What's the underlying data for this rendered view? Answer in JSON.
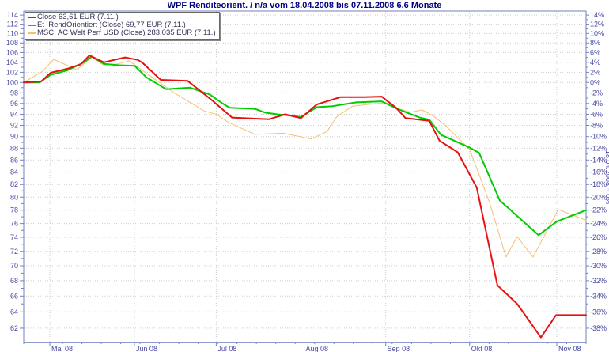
{
  "title": "WPF Renditeorient. / n/a vom 18.04.2008 bis 07.11.2008 6,6 Monate",
  "legend": {
    "items": [
      {
        "label": "Close 63,61 EUR (7.11.)",
        "color": "#e81010"
      },
      {
        "label": "Et_RendOrientiert (Close) 69,77 EUR (7.11.)",
        "color": "#00cc00"
      },
      {
        "label": "MSCI AC Welt Perf USD (Close) 283,035 EUR (7.11.)",
        "color": "#f2c174"
      }
    ]
  },
  "colors": {
    "red": "#e81010",
    "green": "#00cc00",
    "orange": "#f2c174",
    "grid": "#cccccc",
    "axis_text": "#4646a0",
    "axis_line": "#7282c0",
    "title": "#000080"
  },
  "chart_data": {
    "type": "line",
    "title": "WPF Renditeorient. / n/a vom 18.04.2008 bis 07.11.2008 6,6 Monate",
    "date_start": "18.04.2008",
    "date_end": "07.11.2008",
    "duration_label": "6,6 Monate",
    "y_scale": "log",
    "y_left_ticks": [
      114,
      112,
      110,
      108,
      106,
      104,
      102,
      100,
      98,
      96,
      94,
      92,
      90,
      88,
      86,
      84,
      82,
      80,
      78,
      76,
      74,
      72,
      70,
      68,
      66,
      64,
      62
    ],
    "y_right_tick_labels": [
      "14%",
      "12%",
      "10%",
      "8%",
      "6%",
      "4%",
      "2%",
      "0%",
      "-2%",
      "-4%",
      "-6%",
      "-8%",
      "-10%",
      "-12%",
      "-14%",
      "-16%",
      "-18%",
      "-20%",
      "-22%",
      "-24%",
      "-26%",
      "-28%",
      "-30%",
      "-32%",
      "-34%",
      "-36%",
      "-38%"
    ],
    "y_right_axis_title": "18.04.2008 = 0%",
    "x_month_ticks": [
      {
        "label": "Mai 08",
        "t": 0.0465
      },
      {
        "label": "Jun 08",
        "t": 0.1968
      },
      {
        "label": "Jul 08",
        "t": 0.3423
      },
      {
        "label": "Aug 08",
        "t": 0.4986
      },
      {
        "label": "Sep 08",
        "t": 0.6437
      },
      {
        "label": "Okt 08",
        "t": 0.7929
      },
      {
        "label": "Nov 08",
        "t": 0.9479
      }
    ],
    "series": [
      {
        "name": "MSCI AC Welt Perf USD",
        "color": "#f2c174",
        "width": 1,
        "points": [
          [
            0.0,
            100.0
          ],
          [
            0.0324,
            102.1
          ],
          [
            0.0535,
            104.6
          ],
          [
            0.0944,
            102.5
          ],
          [
            0.1211,
            105.0
          ],
          [
            0.1423,
            103.4
          ],
          [
            0.169,
            103.7
          ],
          [
            0.1873,
            104.3
          ],
          [
            0.2183,
            101.8
          ],
          [
            0.2676,
            98.0
          ],
          [
            0.2958,
            96.2
          ],
          [
            0.3211,
            94.6
          ],
          [
            0.3423,
            94.0
          ],
          [
            0.3662,
            92.4
          ],
          [
            0.4113,
            90.4
          ],
          [
            0.4606,
            90.6
          ],
          [
            0.5113,
            89.6
          ],
          [
            0.5394,
            90.9
          ],
          [
            0.5563,
            93.5
          ],
          [
            0.5845,
            95.5
          ],
          [
            0.6197,
            95.9
          ],
          [
            0.6408,
            96.1
          ],
          [
            0.669,
            94.9
          ],
          [
            0.6887,
            94.4
          ],
          [
            0.7085,
            94.8
          ],
          [
            0.7296,
            93.6
          ],
          [
            0.7507,
            91.9
          ],
          [
            0.793,
            87.8
          ],
          [
            0.8282,
            79.2
          ],
          [
            0.8577,
            71.2
          ],
          [
            0.8775,
            74.1
          ],
          [
            0.9056,
            71.2
          ],
          [
            0.9507,
            78.1
          ],
          [
            1.0,
            76.5
          ]
        ]
      },
      {
        "name": "Et_RendOrientiert",
        "color": "#00cc00",
        "width": 2,
        "points": [
          [
            0.0,
            100.0
          ],
          [
            0.028,
            100.0
          ],
          [
            0.048,
            101.5
          ],
          [
            0.0775,
            102.4
          ],
          [
            0.1056,
            103.9
          ],
          [
            0.1211,
            105.2
          ],
          [
            0.1423,
            103.7
          ],
          [
            0.169,
            103.4
          ],
          [
            0.1972,
            103.3
          ],
          [
            0.2183,
            101.0
          ],
          [
            0.2535,
            98.7
          ],
          [
            0.2958,
            99.0
          ],
          [
            0.331,
            97.7
          ],
          [
            0.352,
            96.1
          ],
          [
            0.3662,
            95.2
          ],
          [
            0.4113,
            95.0
          ],
          [
            0.4296,
            94.3
          ],
          [
            0.4507,
            94.0
          ],
          [
            0.4718,
            93.8
          ],
          [
            0.493,
            93.5
          ],
          [
            0.5211,
            95.3
          ],
          [
            0.5493,
            95.5
          ],
          [
            0.5915,
            96.2
          ],
          [
            0.6366,
            96.4
          ],
          [
            0.662,
            95.1
          ],
          [
            0.6789,
            94.4
          ],
          [
            0.7042,
            93.4
          ],
          [
            0.7211,
            93.0
          ],
          [
            0.7423,
            90.3
          ],
          [
            0.793,
            88.1
          ],
          [
            0.8099,
            87.2
          ],
          [
            0.8465,
            79.5
          ],
          [
            0.9155,
            74.3
          ],
          [
            0.9479,
            76.3
          ],
          [
            1.0,
            78.0
          ]
        ]
      },
      {
        "name": "Close",
        "color": "#e81010",
        "width": 2,
        "points": [
          [
            0.0,
            100.0
          ],
          [
            0.031,
            100.2
          ],
          [
            0.048,
            101.9
          ],
          [
            0.0775,
            102.7
          ],
          [
            0.1014,
            103.6
          ],
          [
            0.1169,
            105.4
          ],
          [
            0.1423,
            104.0
          ],
          [
            0.169,
            104.7
          ],
          [
            0.1803,
            105.0
          ],
          [
            0.2028,
            104.5
          ],
          [
            0.2113,
            103.9
          ],
          [
            0.2437,
            100.5
          ],
          [
            0.2915,
            100.3
          ],
          [
            0.3338,
            96.7
          ],
          [
            0.3704,
            93.4
          ],
          [
            0.4113,
            93.2
          ],
          [
            0.4366,
            93.1
          ],
          [
            0.4648,
            94.0
          ],
          [
            0.493,
            93.3
          ],
          [
            0.5211,
            95.8
          ],
          [
            0.5634,
            97.2
          ],
          [
            0.6056,
            97.2
          ],
          [
            0.6366,
            97.3
          ],
          [
            0.662,
            95.2
          ],
          [
            0.6789,
            93.3
          ],
          [
            0.7042,
            93.0
          ],
          [
            0.7211,
            92.8
          ],
          [
            0.7394,
            89.3
          ],
          [
            0.7718,
            87.3
          ],
          [
            0.8056,
            81.5
          ],
          [
            0.8423,
            67.4
          ],
          [
            0.8775,
            65.0
          ],
          [
            0.9197,
            60.9
          ],
          [
            0.9465,
            63.6
          ],
          [
            1.0,
            63.6
          ]
        ]
      }
    ]
  }
}
